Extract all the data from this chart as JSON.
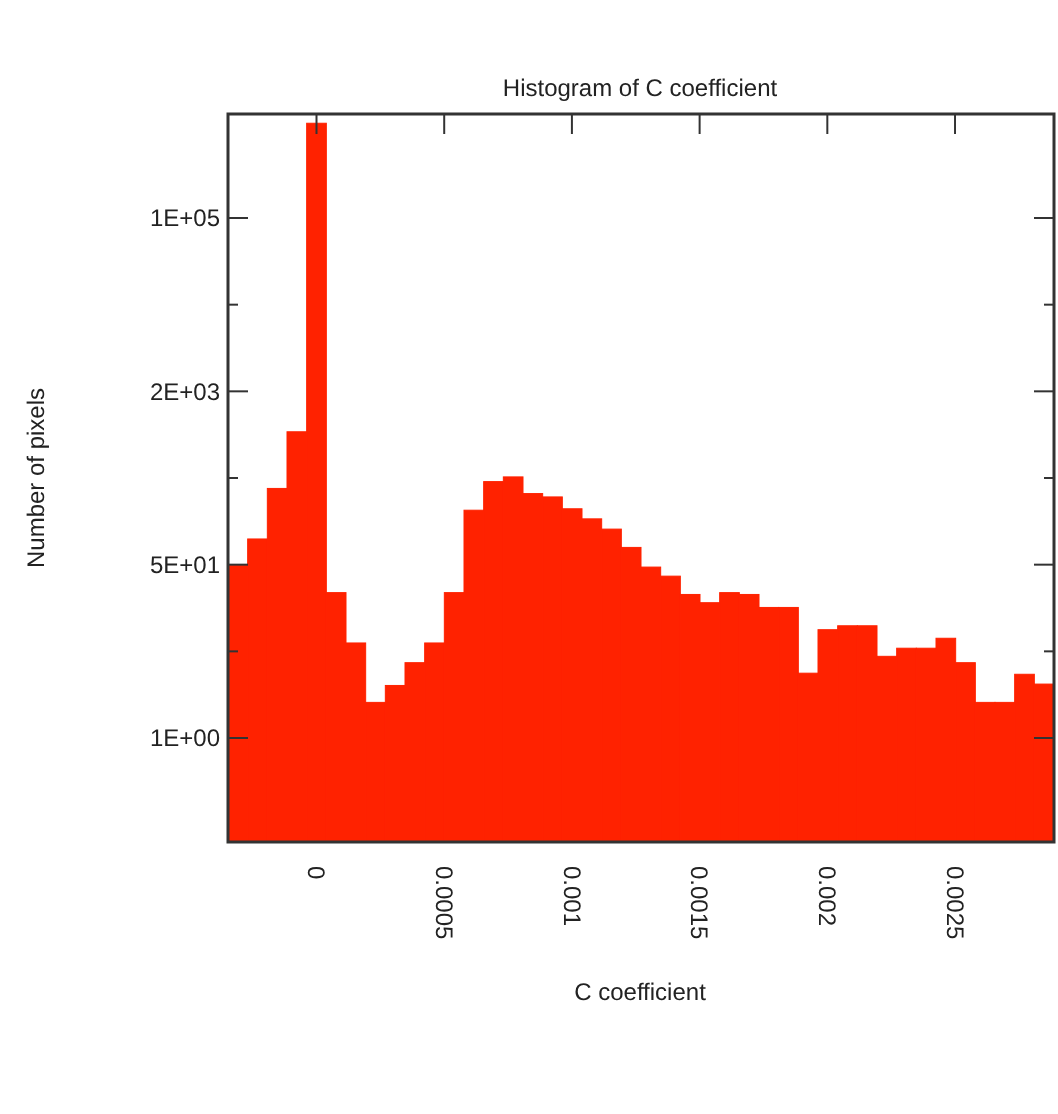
{
  "chart_data": {
    "type": "histogram",
    "title": "Histogram of C coefficient",
    "xlabel": "C coefficient",
    "ylabel": "Number of pixels",
    "color": "#ff2200",
    "bins": [
      -0.0003465,
      -0.0002695,
      -0.0001925,
      -0.0001155,
      -3.85e-05,
      3.85e-05,
      0.0001155,
      0.0001925,
      0.0002695,
      0.0003465,
      0.0004235,
      0.0005005,
      0.0005775,
      0.0006545,
      0.0007315,
      0.0008085,
      0.0008855,
      0.0009625,
      0.0010395,
      0.0011165,
      0.0011935,
      0.0012705,
      0.0013475,
      0.0014245,
      0.0015015,
      0.0015785,
      0.0016555,
      0.0017325,
      0.0018095,
      0.0018865,
      0.0019635,
      0.0020405,
      0.0021175,
      0.0021945,
      0.0022715,
      0.0023485,
      0.0024255,
      0.0025025,
      0.0025795,
      0.0026565,
      0.0027335,
      0.0028105,
      0.0028875
    ],
    "values": [
      46,
      82,
      251,
      880,
      815000,
      25,
      8.2,
      2.2,
      3.2,
      5.3,
      8.2,
      25,
      155,
      292,
      324,
      224,
      208,
      160,
      128,
      102,
      68,
      44,
      36,
      24,
      20,
      25,
      24,
      18,
      18,
      4.2,
      11,
      12,
      12,
      6.1,
      7.3,
      7.3,
      9.1,
      5.3,
      2.2,
      2.2,
      4.1,
      3.3
    ],
    "log": "y",
    "grid": false,
    "xlim": [
      -0.0003465,
      0.0028875
    ],
    "xticks": [
      0,
      0.0005,
      0.001,
      0.0015,
      0.002,
      0.0025
    ],
    "ylim": [
      0.1,
      1000000
    ],
    "yticks": [
      {
        "value": 1,
        "label": "1E+00"
      },
      {
        "value": 6.81,
        "label": null
      },
      {
        "value": 46.42,
        "label": "5E+01"
      },
      {
        "value": 316.2,
        "label": null
      },
      {
        "value": 2154.4,
        "label": "2E+03"
      },
      {
        "value": 14678,
        "label": null
      },
      {
        "value": 100000,
        "label": "1E+05"
      }
    ]
  }
}
